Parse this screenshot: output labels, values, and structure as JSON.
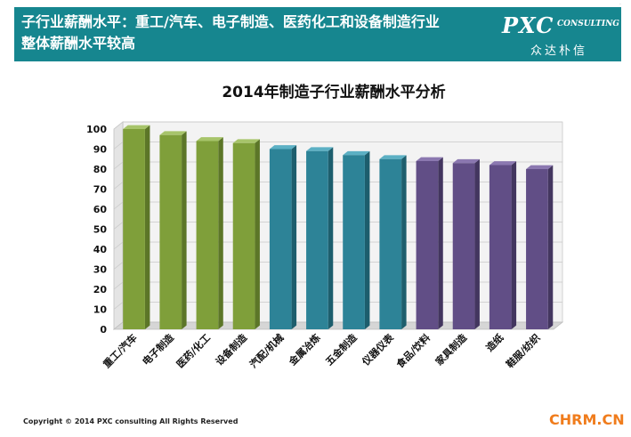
{
  "header": {
    "title_line1": "子行业薪酬水平：重工/汽车、电子制造、医药化工和设备制造行业",
    "title_line2": "整体薪酬水平较高",
    "logo_main": "PXC",
    "logo_sub": "CONSULTING",
    "logo_cn": "众达朴信"
  },
  "chart_data": {
    "type": "bar",
    "title": "2014年制造子行业薪酬水平分析",
    "xlabel": "",
    "ylabel": "",
    "ylim": [
      0,
      100
    ],
    "yticks": [
      0,
      10,
      20,
      30,
      40,
      50,
      60,
      70,
      80,
      90,
      100
    ],
    "grid": true,
    "categories": [
      "重工/汽车",
      "电子制造",
      "医药/化工",
      "设备制造",
      "汽配/机械",
      "金属冶炼",
      "五金制造",
      "仪器仪表",
      "食品/饮料",
      "家具制造",
      "造纸",
      "鞋服/纺织"
    ],
    "values": [
      100,
      97,
      94,
      93,
      90,
      89,
      87,
      85,
      84,
      83,
      82,
      80
    ],
    "colors": {
      "green": "#7f9f3a",
      "teal": "#2d8397",
      "purple": "#614e86"
    },
    "bar_color_groups": [
      "green",
      "green",
      "green",
      "green",
      "teal",
      "teal",
      "teal",
      "teal",
      "purple",
      "purple",
      "purple",
      "purple"
    ]
  },
  "footer": {
    "copyright": "Copyright © 2014  PXC consulting All Rights Reserved",
    "source": "CHRM.CN"
  }
}
